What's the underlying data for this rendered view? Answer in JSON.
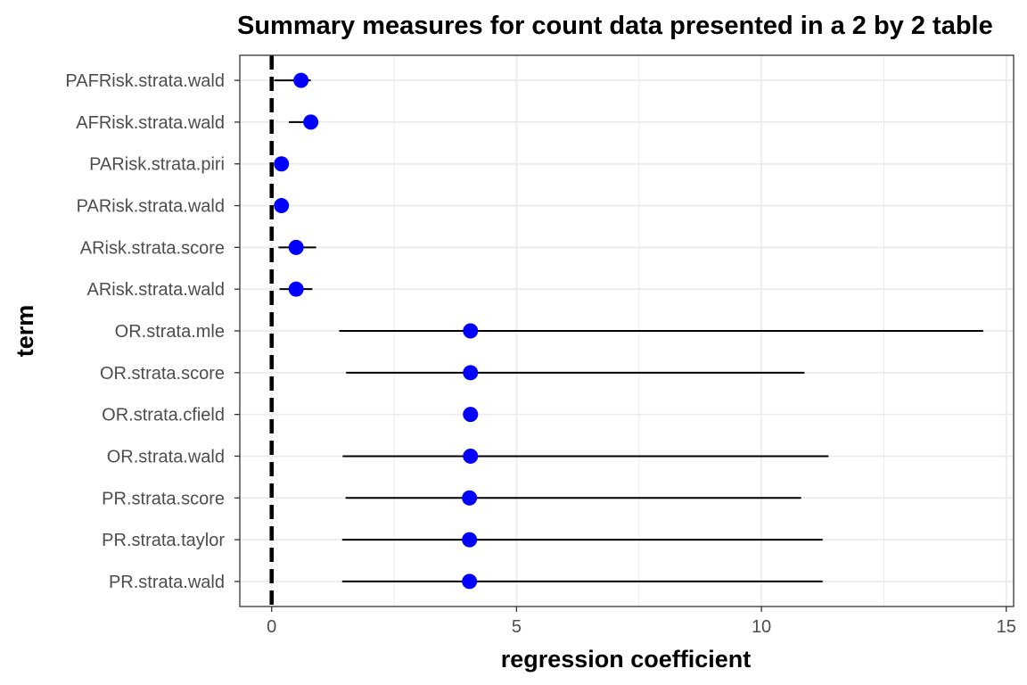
{
  "chart_data": {
    "type": "forest",
    "title": "Summary measures for count data presented in a 2 by 2 table",
    "xlabel": "regression coefficient",
    "ylabel": "term",
    "xlim": [
      -0.65,
      15.15
    ],
    "x_ticks": [
      0,
      5,
      10,
      15
    ],
    "x_tick_labels": [
      "0",
      "5",
      "10",
      "15"
    ],
    "reference_line": {
      "x": 0,
      "style": "dashed"
    },
    "grid": true,
    "point_color": "#0000ff",
    "line_color": "#000000",
    "terms": [
      {
        "term": "PR.strata.wald",
        "estimate": 4.04,
        "conf_low": 1.44,
        "conf_high": 11.25
      },
      {
        "term": "PR.strata.taylor",
        "estimate": 4.04,
        "conf_low": 1.44,
        "conf_high": 11.25
      },
      {
        "term": "PR.strata.score",
        "estimate": 4.04,
        "conf_low": 1.51,
        "conf_high": 10.81
      },
      {
        "term": "OR.strata.wald",
        "estimate": 4.06,
        "conf_low": 1.45,
        "conf_high": 11.37
      },
      {
        "term": "OR.strata.cfield",
        "estimate": 4.06,
        "conf_low": 4.06,
        "conf_high": 4.06
      },
      {
        "term": "OR.strata.score",
        "estimate": 4.06,
        "conf_low": 1.52,
        "conf_high": 10.88
      },
      {
        "term": "OR.strata.mle",
        "estimate": 4.06,
        "conf_low": 1.38,
        "conf_high": 14.53
      },
      {
        "term": "ARisk.strata.wald",
        "estimate": 0.5,
        "conf_low": 0.16,
        "conf_high": 0.83
      },
      {
        "term": "ARisk.strata.score",
        "estimate": 0.5,
        "conf_low": 0.14,
        "conf_high": 0.91
      },
      {
        "term": "PARisk.strata.wald",
        "estimate": 0.2,
        "conf_low": 0.2,
        "conf_high": 0.2
      },
      {
        "term": "PARisk.strata.piri",
        "estimate": 0.2,
        "conf_low": 0.2,
        "conf_high": 0.2
      },
      {
        "term": "AFRisk.strata.wald",
        "estimate": 0.8,
        "conf_low": 0.35,
        "conf_high": 0.8
      },
      {
        "term": "PAFRisk.strata.wald",
        "estimate": 0.6,
        "conf_low": 0.05,
        "conf_high": 0.8
      }
    ]
  }
}
